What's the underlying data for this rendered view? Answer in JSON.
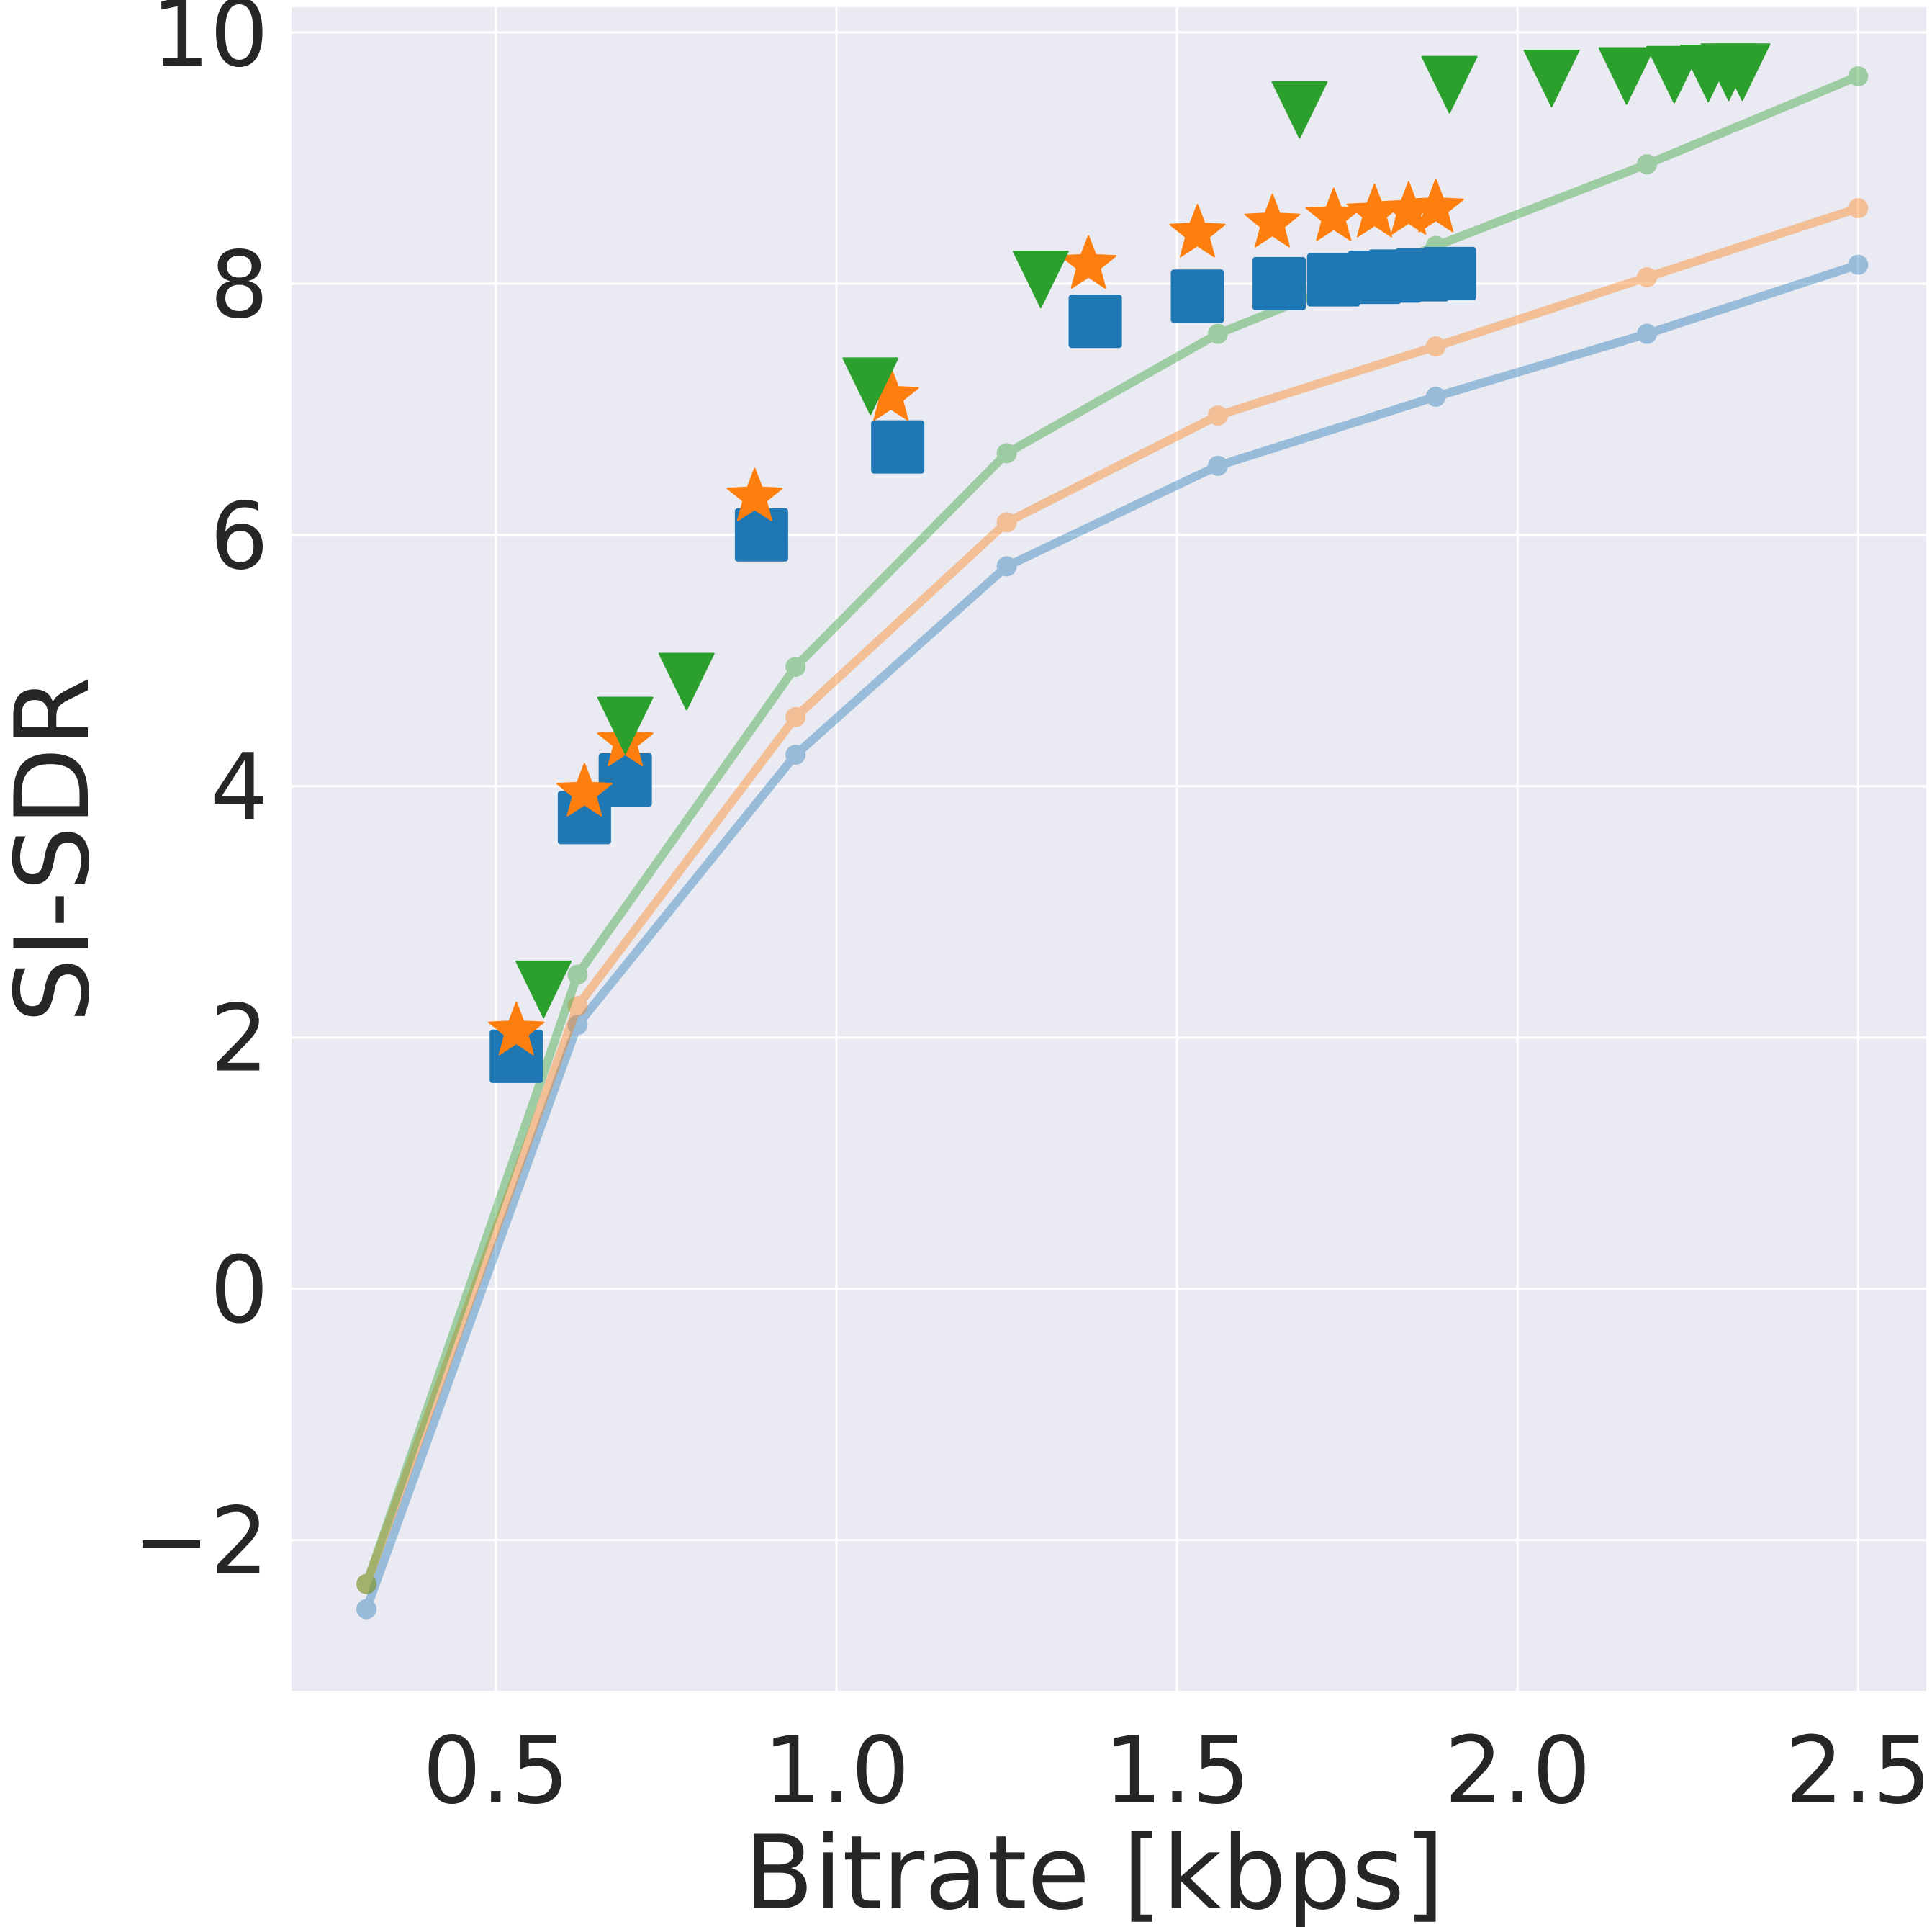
{
  "chart_data": {
    "type": "scatter",
    "xlabel": "Bitrate [kbps]",
    "ylabel": "SI-SDR",
    "xlim": [
      0.2,
      2.6
    ],
    "ylim": [
      -3.2,
      10.2
    ],
    "xticks": [
      0.5,
      1.0,
      1.5,
      2.0,
      2.5
    ],
    "xtick_labels": [
      "0.5",
      "1.0",
      "1.5",
      "2.0",
      "2.5"
    ],
    "yticks": [
      -2,
      0,
      2,
      4,
      6,
      8,
      10
    ],
    "ytick_labels": [
      "−2",
      "0",
      "2",
      "4",
      "6",
      "8",
      "10"
    ],
    "grid": true,
    "line_series": [
      {
        "color": "#1f77b4",
        "x": [
          0.31,
          0.62,
          0.94,
          1.25,
          1.56,
          1.88,
          2.19,
          2.5
        ],
        "y": [
          -2.55,
          2.1,
          4.25,
          5.75,
          6.55,
          7.1,
          7.6,
          8.15
        ]
      },
      {
        "color": "#ff7f0e",
        "x": [
          0.31,
          0.62,
          0.94,
          1.25,
          1.56,
          1.88,
          2.19,
          2.5
        ],
        "y": [
          -2.35,
          2.25,
          4.55,
          6.1,
          6.95,
          7.5,
          8.05,
          8.6
        ]
      },
      {
        "color": "#2ca02c",
        "x": [
          0.31,
          0.62,
          0.94,
          1.25,
          1.56,
          1.88,
          2.19,
          2.5
        ],
        "y": [
          -2.35,
          2.5,
          4.95,
          6.65,
          7.6,
          8.3,
          8.95,
          9.65
        ]
      }
    ],
    "marker_series": [
      {
        "marker": "square",
        "color": "#1f77b4",
        "x": [
          0.53,
          0.63,
          0.69,
          0.89,
          1.09,
          1.38,
          1.53,
          1.65,
          1.73,
          1.79,
          1.82,
          1.86,
          1.9
        ],
        "y": [
          1.85,
          3.75,
          4.05,
          6.0,
          6.7,
          7.7,
          7.9,
          8.0,
          8.03,
          8.05,
          8.06,
          8.07,
          8.08
        ]
      },
      {
        "marker": "star",
        "color": "#ff7f0e",
        "x": [
          0.53,
          0.63,
          0.69,
          0.88,
          1.08,
          1.37,
          1.53,
          1.64,
          1.73,
          1.79,
          1.84,
          1.88
        ],
        "y": [
          2.05,
          3.95,
          4.35,
          6.3,
          7.1,
          8.15,
          8.4,
          8.48,
          8.53,
          8.56,
          8.58,
          8.6
        ]
      },
      {
        "marker": "triangle-down",
        "color": "#2ca02c",
        "x": [
          0.57,
          0.69,
          0.78,
          1.05,
          1.3,
          1.68,
          1.9,
          2.05,
          2.16,
          2.23,
          2.28,
          2.31,
          2.33
        ],
        "y": [
          2.4,
          4.5,
          4.85,
          7.2,
          8.05,
          9.4,
          9.6,
          9.65,
          9.67,
          9.68,
          9.69,
          9.7,
          9.7
        ]
      }
    ],
    "colors": {
      "plot_background": "#eaeaf2",
      "grid": "#ffffff",
      "text": "#262626"
    }
  }
}
